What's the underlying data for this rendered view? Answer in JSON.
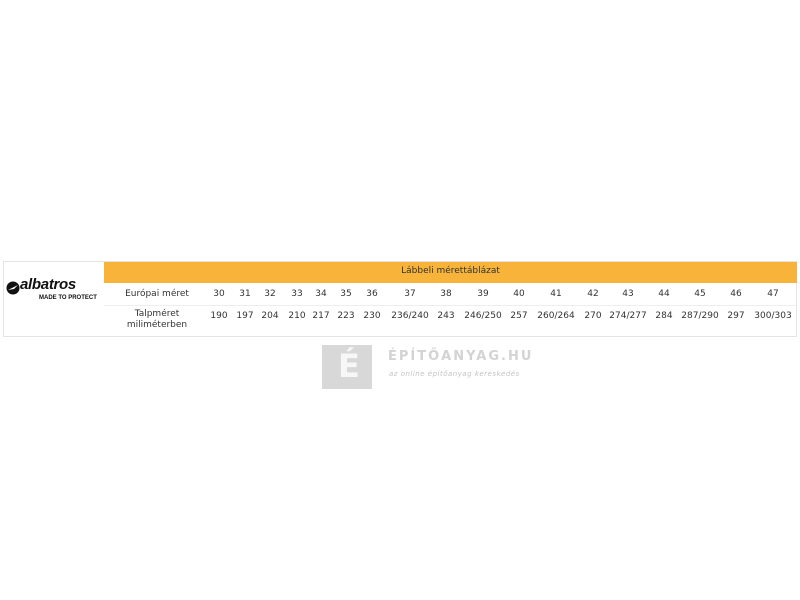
{
  "brand": {
    "logo_text": "albatros",
    "tagline": "MADE TO PROTECT"
  },
  "table": {
    "title": "Lábbeli mérettáblázat",
    "header_color": "#f8b43a",
    "rows": [
      {
        "label": "Európai méret",
        "values": [
          "30",
          "31",
          "32",
          "33",
          "34",
          "35",
          "36",
          "37",
          "38",
          "39",
          "40",
          "41",
          "42",
          "43",
          "44",
          "45",
          "46",
          "47"
        ]
      },
      {
        "label": "Talpméret miliméterben",
        "values": [
          "190",
          "197",
          "204",
          "210",
          "217",
          "223",
          "230",
          "236/240",
          "243",
          "246/250",
          "257",
          "260/264",
          "270",
          "274/277",
          "284",
          "287/290",
          "297",
          "300/303"
        ]
      }
    ]
  },
  "watermark": {
    "letter": "É",
    "name": "ÉPÍTŐANYAG.HU",
    "slogan": "az online építőanyag kereskedés"
  }
}
